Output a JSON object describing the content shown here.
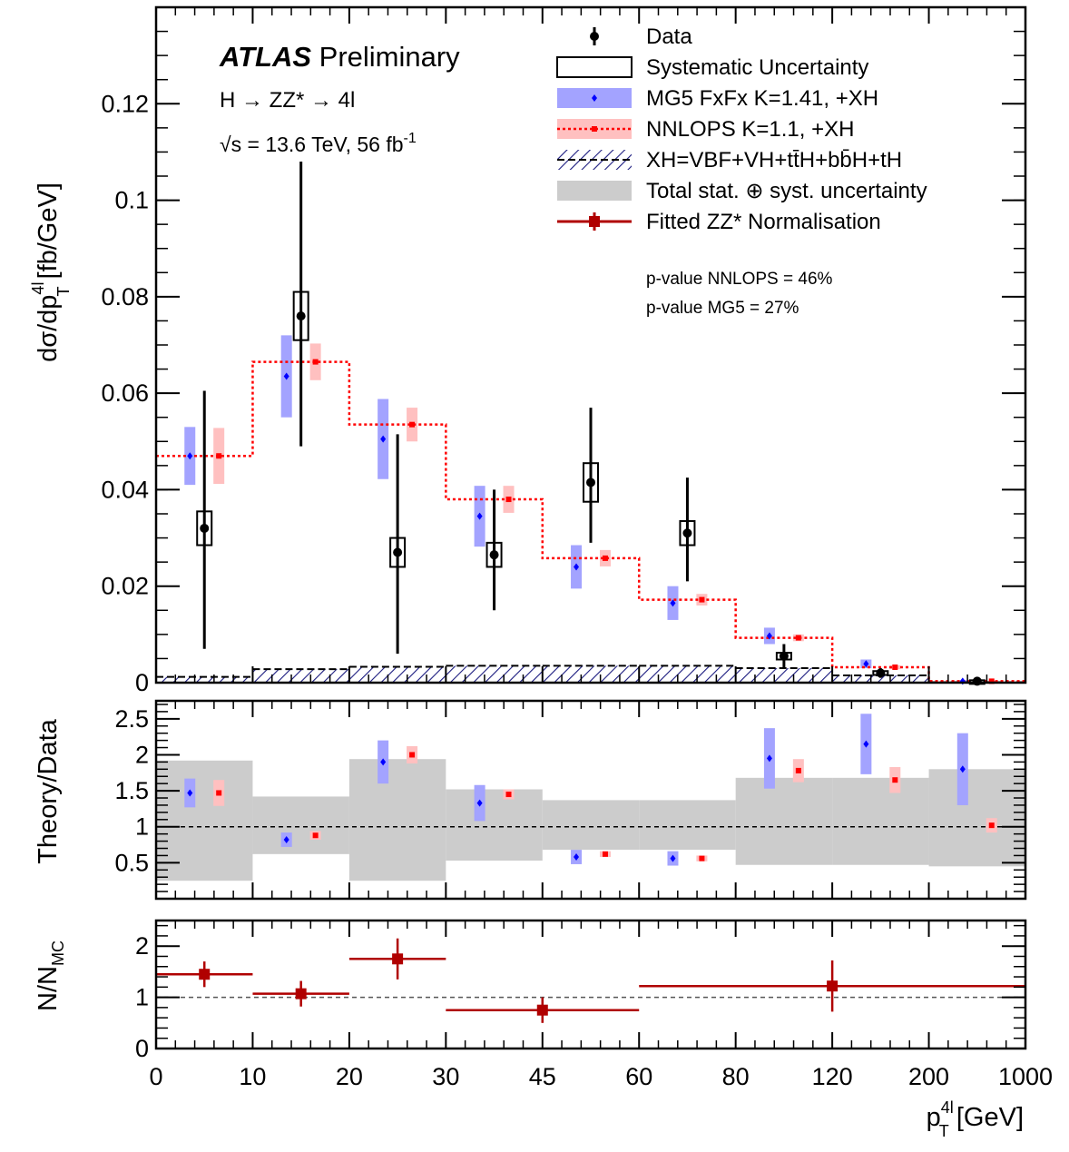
{
  "chart_data": [
    {
      "type": "scatter",
      "panel": "main",
      "ylabel_parts": [
        "dσ/dp",
        "T",
        "4l",
        " [fb/GeV]"
      ],
      "ylim": [
        0,
        0.14
      ],
      "yticks": [
        0,
        0.02,
        0.04,
        0.06,
        0.08,
        0.1,
        0.12
      ],
      "yticklabels": [
        "0",
        "0.02",
        "0.04",
        "0.06",
        "0.08",
        "0.1",
        "0.12"
      ],
      "categories": [
        "0-10",
        "10-20",
        "20-30",
        "30-45",
        "45-60",
        "60-80",
        "80-120",
        "120-200",
        "200-1000"
      ],
      "atlas": "ATLAS",
      "preliminary": "Preliminary",
      "process": "H → ZZ* → 4l",
      "energy_label": "√s = 13.6 TeV, 56 fb",
      "energy_sup": "-1",
      "pvalues": [
        "p-value NNLOPS = 46%",
        "p-value MG5 = 27%"
      ],
      "legend_placement": "top-right",
      "legend": [
        {
          "key": "data",
          "label": "Data"
        },
        {
          "key": "syst",
          "label": "Systematic Uncertainty"
        },
        {
          "key": "mg5",
          "label": "MG5 FxFx K=1.41, +XH"
        },
        {
          "key": "nnlops",
          "label": "NNLOPS K=1.1, +XH"
        },
        {
          "key": "xh",
          "label": "XH=VBF+VH+tt̄H+bb̄H+tH"
        },
        {
          "key": "total",
          "label": "Total stat. ⊕ syst. uncertainty"
        },
        {
          "key": "fit",
          "label": "Fitted ZZ* Normalisation"
        }
      ],
      "series": [
        {
          "name": "Data",
          "values": [
            0.032,
            0.076,
            0.027,
            0.0265,
            0.0415,
            0.031,
            0.0055,
            0.002,
            0.0003
          ],
          "err_lo": [
            0.025,
            0.027,
            0.021,
            0.0115,
            0.0125,
            0.01,
            0.0025,
            0.001,
            0.0003
          ],
          "err_hi": [
            0.0285,
            0.032,
            0.0245,
            0.0135,
            0.0155,
            0.0115,
            0.0025,
            0.001,
            0.0003
          ],
          "syst": [
            0.0035,
            0.005,
            0.003,
            0.0025,
            0.004,
            0.0025,
            0.0007,
            0.0004,
            0.0002
          ],
          "color": "#000000"
        },
        {
          "name": "MG5 FxFx K=1.41, +XH",
          "values": [
            0.047,
            0.0635,
            0.0505,
            0.0345,
            0.024,
            0.0165,
            0.0097,
            0.0039,
            0.0003
          ],
          "err": [
            0.006,
            0.0085,
            0.0083,
            0.0063,
            0.0045,
            0.0035,
            0.0017,
            0.0009,
            0.0002
          ],
          "color": "#0000ff",
          "band": "#a3a3ff"
        },
        {
          "name": "NNLOPS K=1.1, +XH",
          "values": [
            0.047,
            0.0665,
            0.0535,
            0.038,
            0.0258,
            0.0172,
            0.0093,
            0.0032,
            0.0003
          ],
          "err": [
            0.0058,
            0.0038,
            0.0035,
            0.0028,
            0.0017,
            0.0012,
            0.0007,
            0.0004,
            0.0001
          ],
          "color": "#ff0000",
          "band": "#ffc0c0"
        },
        {
          "name": "XH=VBF+VH+tt̄H+bb̄H+tH",
          "values": [
            0.0012,
            0.0028,
            0.0033,
            0.0035,
            0.0035,
            0.0035,
            0.003,
            0.0015,
            0.0001
          ],
          "color": "#00007f"
        }
      ]
    },
    {
      "type": "scatter",
      "panel": "ratio",
      "ylabel": "Theory/Data",
      "ylim": [
        0,
        2.75
      ],
      "yticks": [
        0.5,
        1,
        1.5,
        2,
        2.5
      ],
      "yticklabels": [
        "0.5",
        "1",
        "1.5",
        "2",
        "2.5"
      ],
      "reference_line": 1,
      "total_band": [
        [
          0.25,
          1.92
        ],
        [
          0.62,
          1.42
        ],
        [
          0.25,
          1.94
        ],
        [
          0.53,
          1.52
        ],
        [
          0.68,
          1.37
        ],
        [
          0.68,
          1.37
        ],
        [
          0.47,
          1.68
        ],
        [
          0.47,
          1.68
        ],
        [
          0.45,
          1.8
        ]
      ],
      "series": [
        {
          "name": "MG5 FxFx K=1.41, +XH",
          "values": [
            1.47,
            0.82,
            1.9,
            1.33,
            0.58,
            0.56,
            1.95,
            2.15,
            1.8
          ],
          "err": [
            0.2,
            0.1,
            0.3,
            0.25,
            0.1,
            0.1,
            0.42,
            0.42,
            0.5
          ]
        },
        {
          "name": "NNLOPS K=1.1, +XH",
          "values": [
            1.47,
            0.88,
            2.0,
            1.45,
            0.62,
            0.56,
            1.78,
            1.65,
            1.02
          ],
          "err": [
            0.18,
            0.06,
            0.12,
            0.07,
            0.04,
            0.04,
            0.16,
            0.18,
            0.1
          ]
        }
      ]
    },
    {
      "type": "scatter",
      "panel": "normalisation",
      "ylabel_parts": [
        "N/N",
        "MC"
      ],
      "ylim": [
        0,
        2.5
      ],
      "yticks": [
        0,
        1,
        2
      ],
      "yticklabels": [
        "0",
        "1",
        "2"
      ],
      "reference_line": 1,
      "xticklabels": [
        "0",
        "10",
        "20",
        "30",
        "45",
        "60",
        "80",
        "120",
        "200",
        "1000"
      ],
      "xlabel_parts": [
        "p",
        "T",
        "4l",
        " [GeV]"
      ],
      "series": [
        {
          "name": "Fitted ZZ* Normalisation",
          "color": "#b00000",
          "points": [
            {
              "x_lo": 0,
              "x_hi": 10,
              "x": 5,
              "y": 1.45,
              "err": 0.25
            },
            {
              "x_lo": 10,
              "x_hi": 20,
              "x": 15,
              "y": 1.07,
              "err": 0.25
            },
            {
              "x_lo": 20,
              "x_hi": 30,
              "x": 25,
              "y": 1.75,
              "err": 0.4
            },
            {
              "x_lo": 30,
              "x_hi": 60,
              "x": 45,
              "y": 0.75,
              "err": 0.25
            },
            {
              "x_lo": 60,
              "x_hi": 1000,
              "x": 120,
              "y": 1.22,
              "err": 0.5
            }
          ]
        }
      ]
    }
  ]
}
